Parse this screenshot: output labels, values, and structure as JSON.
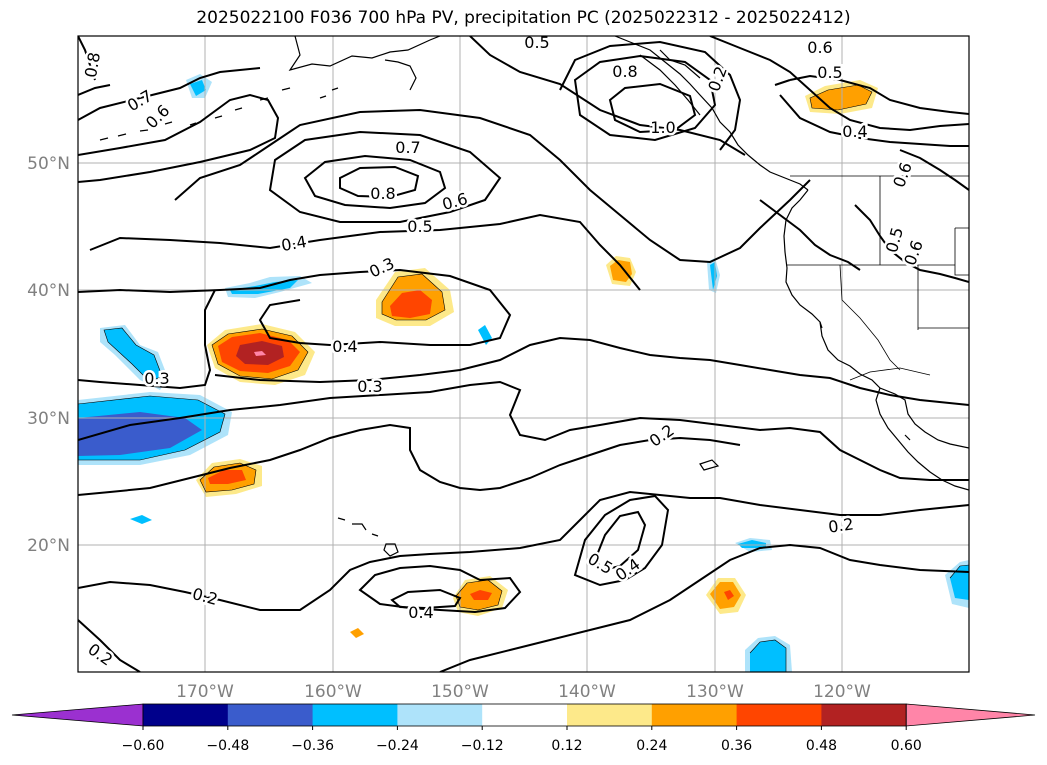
{
  "title": "2025022100 F036 700 hPa PV, precipitation PC (2025022312 - 2025022412)",
  "lat_labels": [
    "50°N",
    "40°N",
    "30°N",
    "20°N"
  ],
  "lon_labels": [
    "170°W",
    "160°W",
    "150°W",
    "140°W",
    "130°W",
    "120°W"
  ],
  "colorbar": {
    "tick_labels": [
      "−0.60",
      "−0.48",
      "−0.36",
      "−0.24",
      "−0.12",
      "0.12",
      "0.24",
      "0.36",
      "0.48",
      "0.60"
    ],
    "colors": [
      "#9b30d0",
      "#00008b",
      "#3a5ccc",
      "#00bfff",
      "#aee3fa",
      "#ffffff",
      "#fde98a",
      "#ffa000",
      "#ff4500",
      "#b22222",
      "#ff85a8"
    ]
  },
  "contour_labels": [
    "0.5",
    "0.6",
    "0.8",
    "0.5",
    "1.0",
    "0.4",
    "0.6",
    "0.7",
    "0.7",
    "0.8",
    "0.6",
    "0.5",
    "0.4",
    "0.5",
    "0.6",
    "0.6",
    "0.3",
    "0.4",
    "0.3",
    "0.3",
    "0.2",
    "0.2",
    "0.5",
    "0.4",
    "0.2",
    "0.4",
    "0.2",
    "0.8",
    "0.2"
  ],
  "colors": {
    "contour": "#000000",
    "grid": "#b0b0b0",
    "coast": "#000000",
    "axis_labels": "#808080"
  }
}
